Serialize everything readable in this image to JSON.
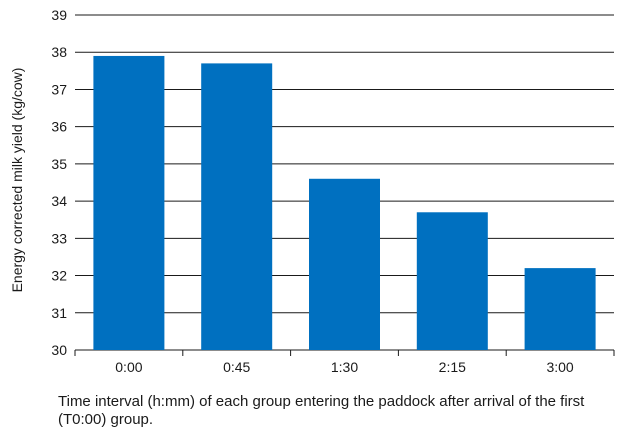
{
  "chart_data": {
    "type": "bar",
    "categories": [
      "0:00",
      "0:45",
      "1:30",
      "2:15",
      "3:00"
    ],
    "values": [
      37.9,
      37.7,
      34.6,
      33.7,
      32.2
    ],
    "ylabel": "Energy corrected milk yield (kg/cow)",
    "xlabel": "Time interval (h:mm) of each group entering the paddock after arrival of the first (T0:00) group.",
    "ylim": [
      30,
      39
    ],
    "yticks": [
      30,
      31,
      32,
      33,
      34,
      35,
      36,
      37,
      38,
      39
    ],
    "grid": true,
    "bar_color": "#0070c0",
    "grid_color": "#1a1a1a"
  }
}
